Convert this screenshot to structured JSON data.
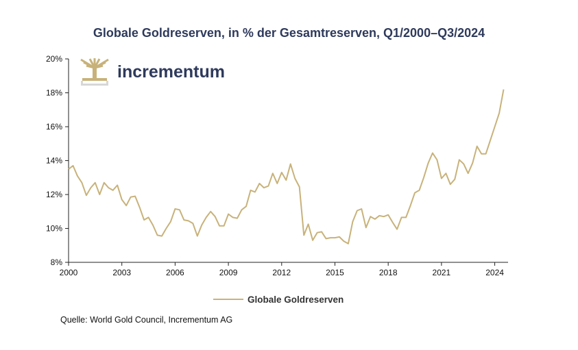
{
  "title": "Globale Goldreserven, in % der Gesamtreserven, Q1/2000–Q3/2024",
  "source": "Quelle: World Gold Council, Incrementum AG",
  "logo": {
    "name": "incrementum"
  },
  "colors": {
    "line": "#c8b27a",
    "title": "#2e3a5c",
    "axis": "#222222"
  },
  "chart_data": {
    "type": "line",
    "title": "Globale Goldreserven, in % der Gesamtreserven, Q1/2000–Q3/2024",
    "xlim": [
      2000,
      2024.75
    ],
    "ylim": [
      8,
      20
    ],
    "x_ticks": [
      2000,
      2003,
      2006,
      2009,
      2012,
      2015,
      2018,
      2021,
      2024
    ],
    "x_tick_labels": [
      "2000",
      "2003",
      "2006",
      "2009",
      "2012",
      "2015",
      "2018",
      "2021",
      "2024"
    ],
    "y_ticks": [
      8,
      10,
      12,
      14,
      16,
      18,
      20
    ],
    "y_tick_labels": [
      "8%",
      "10%",
      "12%",
      "14%",
      "16%",
      "18%",
      "20%"
    ],
    "grid": false,
    "legend": "bottom-center",
    "series": [
      {
        "name": "Globale Goldreserven",
        "x": [
          2000.0,
          2000.25,
          2000.5,
          2000.75,
          2001.0,
          2001.25,
          2001.5,
          2001.75,
          2002.0,
          2002.25,
          2002.5,
          2002.75,
          2003.0,
          2003.25,
          2003.5,
          2003.75,
          2004.0,
          2004.25,
          2004.5,
          2004.75,
          2005.0,
          2005.25,
          2005.5,
          2005.75,
          2006.0,
          2006.25,
          2006.5,
          2006.75,
          2007.0,
          2007.25,
          2007.5,
          2007.75,
          2008.0,
          2008.25,
          2008.5,
          2008.75,
          2009.0,
          2009.25,
          2009.5,
          2009.75,
          2010.0,
          2010.25,
          2010.5,
          2010.75,
          2011.0,
          2011.25,
          2011.5,
          2011.75,
          2012.0,
          2012.25,
          2012.5,
          2012.75,
          2013.0,
          2013.25,
          2013.5,
          2013.75,
          2014.0,
          2014.25,
          2014.5,
          2014.75,
          2015.0,
          2015.25,
          2015.5,
          2015.75,
          2016.0,
          2016.25,
          2016.5,
          2016.75,
          2017.0,
          2017.25,
          2017.5,
          2017.75,
          2018.0,
          2018.25,
          2018.5,
          2018.75,
          2019.0,
          2019.25,
          2019.5,
          2019.75,
          2020.0,
          2020.25,
          2020.5,
          2020.75,
          2021.0,
          2021.25,
          2021.5,
          2021.75,
          2022.0,
          2022.25,
          2022.5,
          2022.75,
          2023.0,
          2023.25,
          2023.5,
          2023.75,
          2024.0,
          2024.25,
          2024.5
        ],
        "values": [
          13.5,
          13.7,
          13.1,
          12.7,
          11.95,
          12.4,
          12.7,
          12.0,
          12.7,
          12.4,
          12.25,
          12.55,
          11.7,
          11.35,
          11.85,
          11.9,
          11.25,
          10.5,
          10.65,
          10.2,
          9.6,
          9.55,
          10.0,
          10.4,
          11.15,
          11.1,
          10.5,
          10.45,
          10.3,
          9.55,
          10.2,
          10.65,
          11.0,
          10.7,
          10.15,
          10.15,
          10.85,
          10.65,
          10.6,
          11.1,
          11.3,
          12.25,
          12.15,
          12.65,
          12.4,
          12.5,
          13.25,
          12.65,
          13.3,
          12.85,
          13.8,
          12.95,
          12.45,
          9.6,
          10.25,
          9.3,
          9.75,
          9.8,
          9.4,
          9.45,
          9.45,
          9.5,
          9.25,
          9.1,
          10.4,
          11.05,
          11.15,
          10.05,
          10.7,
          10.55,
          10.75,
          10.7,
          10.8,
          10.35,
          9.95,
          10.65,
          10.65,
          11.35,
          12.1,
          12.25,
          13.0,
          13.85,
          14.45,
          14.05,
          12.95,
          13.25,
          12.6,
          12.9,
          14.05,
          13.8,
          13.25,
          13.85,
          14.85,
          14.4,
          14.4,
          15.2,
          16.0,
          16.8,
          18.2
        ]
      }
    ]
  }
}
